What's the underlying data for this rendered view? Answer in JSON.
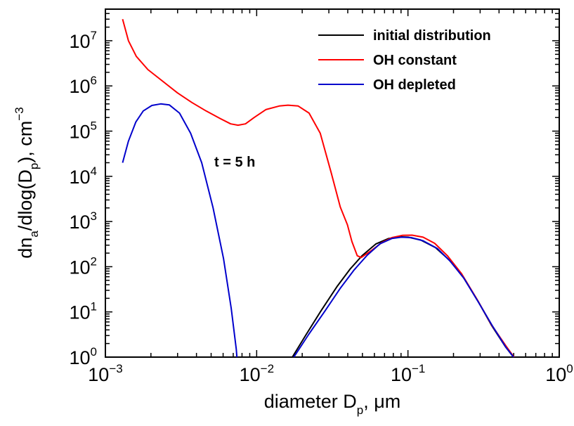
{
  "chart_data": {
    "type": "line",
    "xscale": "log",
    "yscale": "log",
    "xlim": [
      0.001,
      1
    ],
    "ylim": [
      1,
      50000000
    ],
    "grid": false,
    "legend_position": "top-right",
    "xlabel": {
      "main": "diameter D",
      "sub": "p",
      "tail": ", μm"
    },
    "ylabel": {
      "pre": "dn",
      "sub1": "a",
      "mid": "/dlog(D",
      "sub2": "p",
      "post": "), cm",
      "sup": "−3"
    },
    "x_ticks": [
      {
        "value": 0.001,
        "base": "10",
        "exp": "−3"
      },
      {
        "value": 0.01,
        "base": "10",
        "exp": "−2"
      },
      {
        "value": 0.1,
        "base": "10",
        "exp": "−1"
      },
      {
        "value": 1,
        "base": "10",
        "exp": "0"
      }
    ],
    "y_ticks": [
      {
        "value": 1,
        "base": "10",
        "exp": "0"
      },
      {
        "value": 10,
        "base": "10",
        "exp": "1"
      },
      {
        "value": 100,
        "base": "10",
        "exp": "2"
      },
      {
        "value": 1000,
        "base": "10",
        "exp": "3"
      },
      {
        "value": 10000,
        "base": "10",
        "exp": "4"
      },
      {
        "value": 100000,
        "base": "10",
        "exp": "5"
      },
      {
        "value": 1000000,
        "base": "10",
        "exp": "6"
      },
      {
        "value": 10000000,
        "base": "10",
        "exp": "7"
      }
    ],
    "annotation": "t = 5 h",
    "series": [
      {
        "name": "initial distribution",
        "color": "#000000",
        "points": [
          [
            0.0172,
            1
          ],
          [
            0.0213,
            3.2
          ],
          [
            0.0266,
            10.5
          ],
          [
            0.0339,
            36
          ],
          [
            0.0416,
            90
          ],
          [
            0.0497,
            175
          ],
          [
            0.0615,
            320
          ],
          [
            0.0744,
            420
          ],
          [
            0.0863,
            460
          ],
          [
            0.1002,
            450
          ],
          [
            0.1213,
            390
          ],
          [
            0.1521,
            265
          ],
          [
            0.1876,
            140
          ],
          [
            0.2312,
            60
          ],
          [
            0.2914,
            17
          ],
          [
            0.3576,
            5
          ],
          [
            0.4407,
            1.7
          ],
          [
            0.4987,
            1
          ]
        ]
      },
      {
        "name": "OH constant",
        "color": "#ff0000",
        "points": [
          [
            0.0013,
            30000000
          ],
          [
            0.00142,
            10000000
          ],
          [
            0.0016,
            4500000
          ],
          [
            0.00191,
            2300000
          ],
          [
            0.00237,
            1300000
          ],
          [
            0.003,
            700000
          ],
          [
            0.00373,
            430000
          ],
          [
            0.00463,
            280000
          ],
          [
            0.00574,
            190000
          ],
          [
            0.00673,
            145000
          ],
          [
            0.00753,
            135000
          ],
          [
            0.00843,
            145000
          ],
          [
            0.00962,
            200000
          ],
          [
            0.0115,
            300000
          ],
          [
            0.0141,
            360000
          ],
          [
            0.0161,
            375000
          ],
          [
            0.0188,
            360000
          ],
          [
            0.0222,
            250000
          ],
          [
            0.0263,
            90000
          ],
          [
            0.0311,
            12000
          ],
          [
            0.0357,
            2100
          ],
          [
            0.0398,
            850
          ],
          [
            0.0426,
            360
          ],
          [
            0.0462,
            175
          ],
          [
            0.0491,
            160
          ],
          [
            0.0575,
            230
          ],
          [
            0.0671,
            340
          ],
          [
            0.0784,
            440
          ],
          [
            0.0917,
            495
          ],
          [
            0.1064,
            500
          ],
          [
            0.1259,
            450
          ],
          [
            0.1502,
            330
          ],
          [
            0.1822,
            175
          ],
          [
            0.2261,
            70
          ],
          [
            0.2836,
            20
          ],
          [
            0.3589,
            5
          ],
          [
            0.4481,
            1.7
          ],
          [
            0.5025,
            1
          ]
        ]
      },
      {
        "name": "OH depleted",
        "color": "#0000cc",
        "points": [
          [
            0.0013,
            20000
          ],
          [
            0.00142,
            60000
          ],
          [
            0.00159,
            160000
          ],
          [
            0.00178,
            280000
          ],
          [
            0.00203,
            370000
          ],
          [
            0.00232,
            400000
          ],
          [
            0.00265,
            380000
          ],
          [
            0.00309,
            250000
          ],
          [
            0.00366,
            90000
          ],
          [
            0.00433,
            20000
          ],
          [
            0.00515,
            2000
          ],
          [
            0.00604,
            150
          ],
          [
            0.00679,
            12
          ],
          [
            0.00733,
            1.5
          ],
          [
            0.0074,
            1
          ]
        ]
      },
      {
        "name": "",
        "color": "#0000cc",
        "points": [
          [
            0.0176,
            1
          ],
          [
            0.0221,
            3.2
          ],
          [
            0.0283,
            10.5
          ],
          [
            0.0356,
            33
          ],
          [
            0.0441,
            85
          ],
          [
            0.0538,
            180
          ],
          [
            0.0653,
            320
          ],
          [
            0.0781,
            420
          ],
          [
            0.0905,
            450
          ],
          [
            0.1051,
            440
          ],
          [
            0.1259,
            375
          ],
          [
            0.1571,
            250
          ],
          [
            0.1913,
            130
          ],
          [
            0.2348,
            55
          ],
          [
            0.2936,
            16
          ],
          [
            0.3605,
            5
          ],
          [
            0.4413,
            1.7
          ],
          [
            0.4993,
            1
          ]
        ]
      }
    ]
  }
}
